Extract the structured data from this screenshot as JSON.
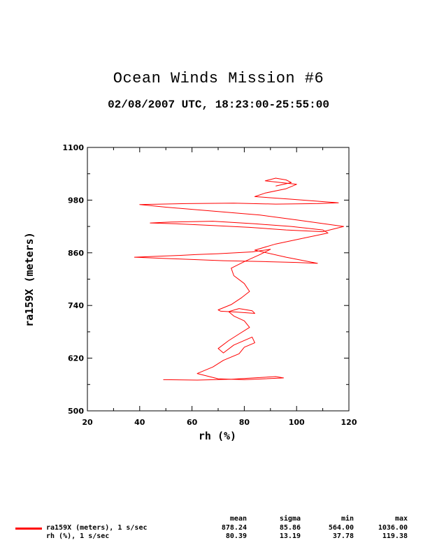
{
  "title": "Ocean Winds Mission #6",
  "subtitle": "02/08/2007  UTC, 18:23:00-25:55:00",
  "chart_data": {
    "type": "line",
    "xlabel": "rh (%)",
    "ylabel": "ra159X (meters)",
    "xlim": [
      20,
      120
    ],
    "ylim": [
      500,
      1100
    ],
    "x_ticks": [
      "20",
      "40",
      "60",
      "80",
      "100",
      "120"
    ],
    "y_ticks": [
      "500",
      "620",
      "740",
      "860",
      "980",
      "1100"
    ],
    "series_color": "#ff0000",
    "series": [
      {
        "name": "ra159X (meters), 1 s/sec",
        "x": [
          49,
          62,
          75,
          92,
          95,
          80,
          70,
          62,
          68,
          72,
          78,
          80,
          84,
          83,
          76,
          72,
          70,
          74,
          78,
          82,
          80,
          76,
          74,
          78,
          83,
          84,
          77,
          71,
          70,
          75,
          79,
          82,
          80,
          76,
          75,
          80,
          86,
          90,
          83,
          70,
          62,
          55,
          47,
          38,
          55,
          72,
          88,
          100,
          108,
          96,
          84,
          92,
          104,
          112,
          110,
          98,
          84,
          68,
          52,
          44,
          54,
          68,
          82,
          96,
          110,
          118,
          100,
          86,
          74,
          62,
          50,
          40,
          58,
          76,
          92,
          108,
          116,
          98,
          84,
          88,
          96,
          100,
          88,
          92,
          96,
          98,
          92
        ],
        "y": [
          571,
          570,
          572,
          578,
          575,
          571,
          573,
          585,
          600,
          615,
          630,
          645,
          655,
          668,
          650,
          632,
          642,
          660,
          675,
          690,
          705,
          716,
          726,
          733,
          728,
          722,
          725,
          727,
          730,
          742,
          758,
          772,
          790,
          808,
          825,
          840,
          856,
          868,
          862,
          858,
          856,
          854,
          852,
          850,
          846,
          842,
          840,
          838,
          836,
          850,
          866,
          880,
          895,
          905,
          912,
          920,
          926,
          932,
          930,
          928,
          926,
          922,
          918,
          912,
          908,
          920,
          935,
          946,
          952,
          958,
          964,
          970,
          972,
          973,
          971,
          972,
          974,
          982,
          988,
          996,
          1006,
          1016,
          1024,
          1030,
          1026,
          1020,
          1012
        ]
      },
      {
        "name": "rh (%), 1 s/sec"
      }
    ]
  },
  "stats": {
    "headers": [
      "mean",
      "sigma",
      "min",
      "max"
    ],
    "rows": [
      {
        "label": "ra159X (meters), 1 s/sec",
        "mean": "878.24",
        "sigma": "85.86",
        "min": "564.00",
        "max": "1036.00"
      },
      {
        "label": "rh (%), 1 s/sec",
        "mean": "80.39",
        "sigma": "13.19",
        "min": "37.78",
        "max": "119.38"
      }
    ]
  }
}
